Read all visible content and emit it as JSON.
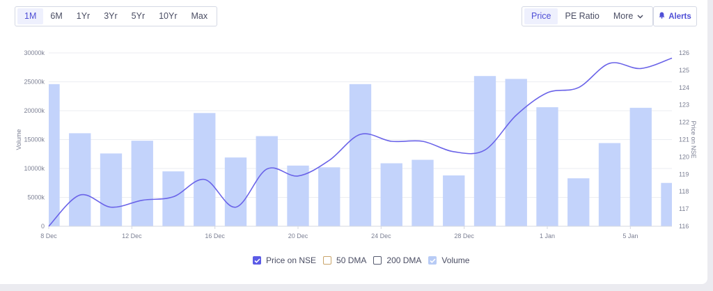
{
  "toolbar": {
    "ranges": [
      "1M",
      "6M",
      "1Yr",
      "3Yr",
      "5Yr",
      "10Yr",
      "Max"
    ],
    "active_range": "1M",
    "metrics": [
      "Price",
      "PE Ratio"
    ],
    "active_metric": "Price",
    "more_label": "More",
    "alerts_label": "Alerts"
  },
  "legend": {
    "price": "Price on NSE",
    "dma50": "50 DMA",
    "dma200": "200 DMA",
    "volume": "Volume"
  },
  "colors": {
    "price_line": "#6a63e8",
    "volume_bar": "#c3d3fb",
    "accent": "#4f4fd6",
    "dma50": "#c9a46a",
    "dma200": "#555a6e"
  },
  "chart_data": {
    "type": "bar+line",
    "xlabel": "",
    "ylabel_left": "Volume",
    "ylabel_right": "Price on NSE",
    "y_left_ticks": [
      "0",
      "5000k",
      "10000k",
      "15000k",
      "20000k",
      "25000k",
      "30000k"
    ],
    "y_left_lim": [
      0,
      30000
    ],
    "y_right_ticks": [
      "116",
      "117",
      "118",
      "119",
      "120",
      "121",
      "122",
      "123",
      "124",
      "125",
      "126"
    ],
    "y_right_lim": [
      116,
      126
    ],
    "x_ticks": [
      {
        "label": "8 Dec",
        "day": 0
      },
      {
        "label": "12 Dec",
        "day": 4
      },
      {
        "label": "16 Dec",
        "day": 8
      },
      {
        "label": "20 Dec",
        "day": 12
      },
      {
        "label": "24 Dec",
        "day": 16
      },
      {
        "label": "28 Dec",
        "day": 20
      },
      {
        "label": "1 Jan",
        "day": 24
      },
      {
        "label": "5 Jan",
        "day": 28
      }
    ],
    "volume": {
      "name": "Volume",
      "unit": "k",
      "points": [
        {
          "day": 0,
          "value": 24600
        },
        {
          "day": 1,
          "value": 16100
        },
        {
          "day": 2,
          "value": 12600
        },
        {
          "day": 3,
          "value": 14800
        },
        {
          "day": 4,
          "value": 9500
        },
        {
          "day": 5,
          "value": 19600
        },
        {
          "day": 6,
          "value": 11900
        },
        {
          "day": 7,
          "value": 15600
        },
        {
          "day": 8,
          "value": 10500
        },
        {
          "day": 9,
          "value": 10200
        },
        {
          "day": 10,
          "value": 24600
        },
        {
          "day": 11,
          "value": 10900
        },
        {
          "day": 12,
          "value": 11500
        },
        {
          "day": 13,
          "value": 8800
        },
        {
          "day": 14,
          "value": 26000
        },
        {
          "day": 15,
          "value": 25500
        },
        {
          "day": 16,
          "value": 20600
        },
        {
          "day": 17,
          "value": 8300
        },
        {
          "day": 18,
          "value": 14400
        },
        {
          "day": 19,
          "value": 20500
        },
        {
          "day": 20,
          "value": 7500
        }
      ]
    },
    "price": {
      "name": "Price on NSE",
      "points": [
        {
          "day": 0,
          "value": 116.0
        },
        {
          "day": 1,
          "value": 117.8
        },
        {
          "day": 2,
          "value": 117.1
        },
        {
          "day": 3,
          "value": 117.5
        },
        {
          "day": 4,
          "value": 117.7
        },
        {
          "day": 5,
          "value": 118.7
        },
        {
          "day": 6,
          "value": 117.1
        },
        {
          "day": 7,
          "value": 119.3
        },
        {
          "day": 8,
          "value": 118.9
        },
        {
          "day": 9,
          "value": 119.8
        },
        {
          "day": 10,
          "value": 121.3
        },
        {
          "day": 11,
          "value": 120.9
        },
        {
          "day": 12,
          "value": 120.9
        },
        {
          "day": 13,
          "value": 120.3
        },
        {
          "day": 14,
          "value": 120.4
        },
        {
          "day": 15,
          "value": 122.4
        },
        {
          "day": 16,
          "value": 123.7
        },
        {
          "day": 17,
          "value": 124.0
        },
        {
          "day": 18,
          "value": 125.4
        },
        {
          "day": 19,
          "value": 125.1
        },
        {
          "day": 20,
          "value": 125.7
        }
      ]
    },
    "grid": true,
    "legend_position": "bottom"
  }
}
